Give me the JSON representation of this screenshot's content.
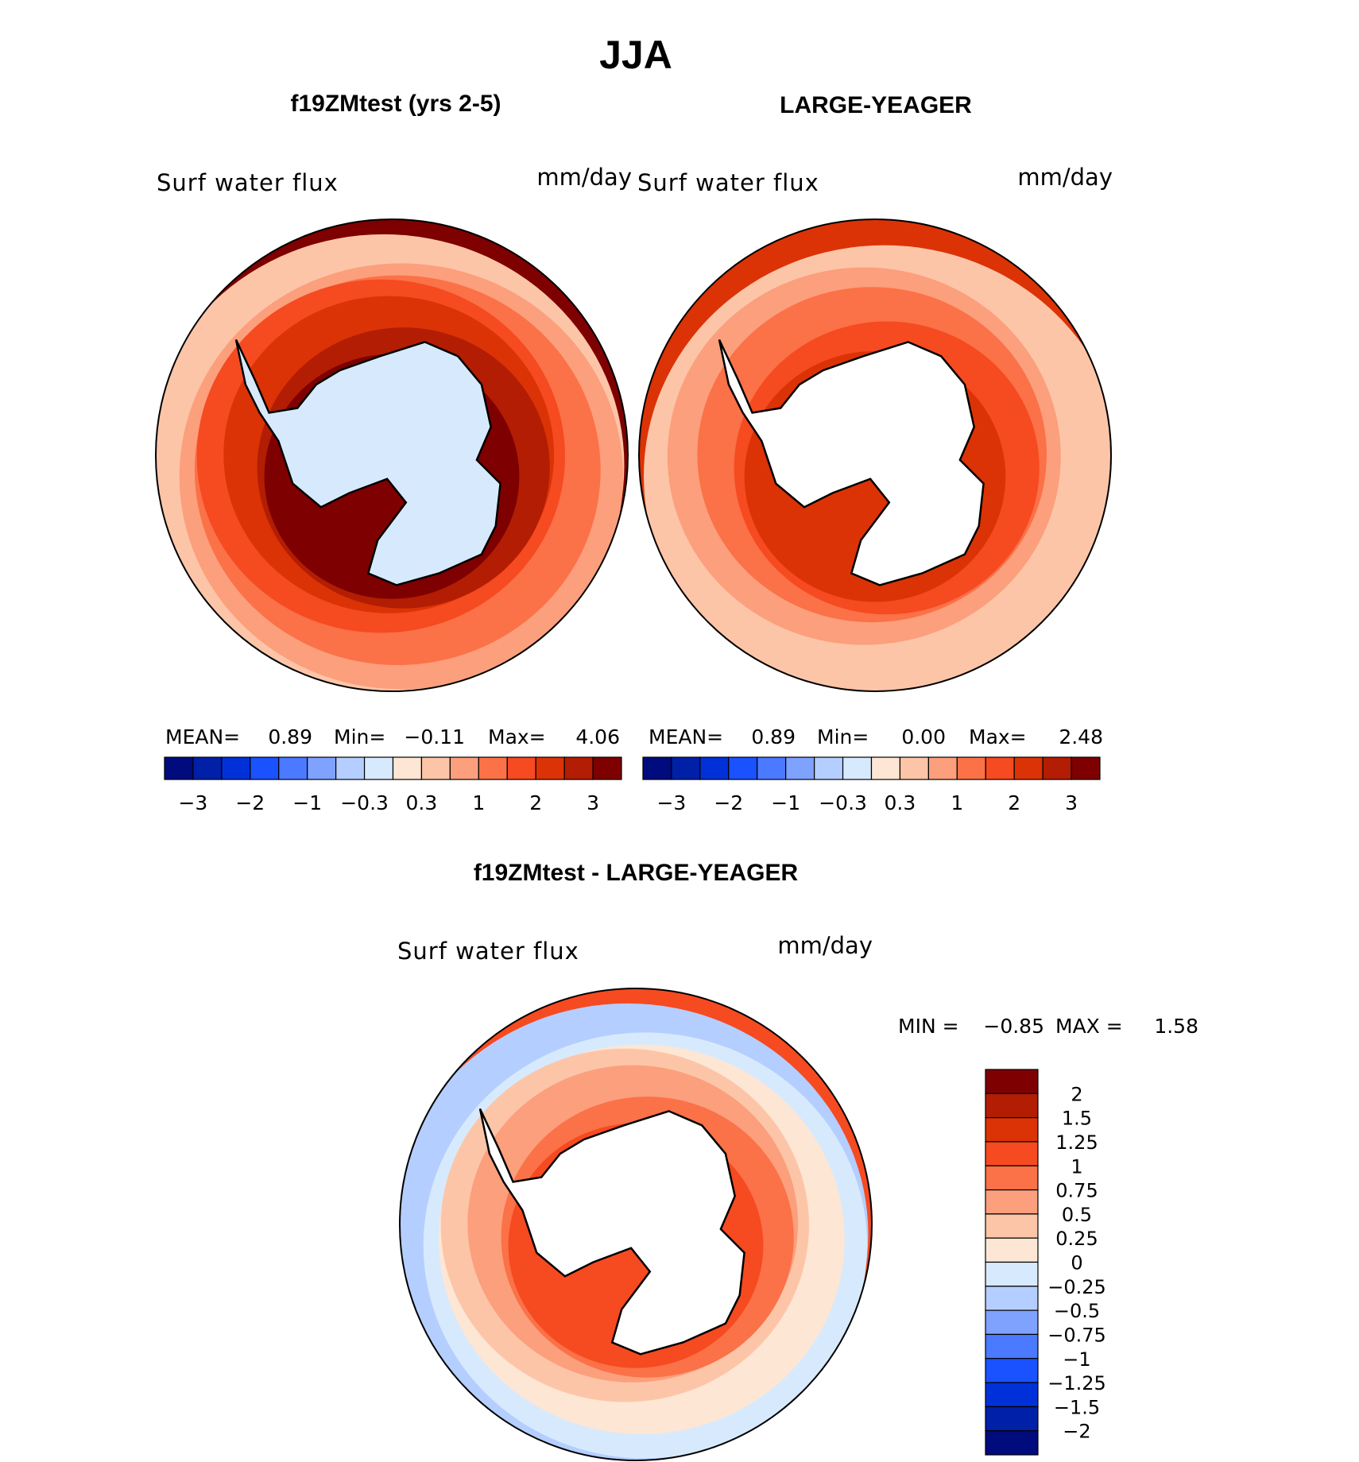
{
  "title": "JJA",
  "panels": [
    {
      "title": "f19ZMtest (yrs 2-5)",
      "variable": "Surf water flux",
      "units": "mm/day",
      "stats": {
        "mean_label": "MEAN=",
        "mean": "0.89",
        "min_label": "Min=",
        "min": "−0.11",
        "max_label": "Max=",
        "max": "4.06"
      },
      "land_color": "#d7eafd",
      "levels": [
        0.3,
        1,
        1.5,
        2,
        2.5,
        3,
        3.5
      ]
    },
    {
      "title": "LARGE-YEAGER",
      "variable": "Surf water flux",
      "units": "mm/day",
      "stats": {
        "mean_label": "MEAN=",
        "mean": "0.89",
        "min_label": "Min=",
        "min": "0.00",
        "max_label": "Max=",
        "max": "2.48"
      },
      "land_color": "#ffffff",
      "levels": [
        0.3,
        0.5,
        1,
        1.5,
        2,
        2.5
      ]
    }
  ],
  "colorbar_abs": {
    "colors": [
      "#000b7d",
      "#0020a8",
      "#0031d8",
      "#1a52ff",
      "#4b79ff",
      "#7fa2ff",
      "#b4ceff",
      "#d7eafd",
      "#fde6d4",
      "#fdc5a8",
      "#fc9f7c",
      "#fb7148",
      "#f64a21",
      "#db3306",
      "#b21d03",
      "#7e0001"
    ],
    "tick_labels": [
      "−3",
      "−2",
      "−1",
      "−0.3",
      "0.3",
      "1",
      "2",
      "3"
    ]
  },
  "diff_panel": {
    "title": "f19ZMtest - LARGE-YEAGER",
    "variable": "Surf water flux",
    "units": "mm/day",
    "min_label": "MIN =",
    "min": "−0.85",
    "max_label": "MAX =",
    "max": "1.58",
    "levels": [
      -0.5,
      -0.25,
      0,
      0.25,
      0.5,
      0.75,
      1
    ]
  },
  "colorbar_diff": {
    "colors": [
      "#7e0001",
      "#b21d03",
      "#db3306",
      "#f64a21",
      "#fb7148",
      "#fc9f7c",
      "#fdc5a8",
      "#fde6d4",
      "#d7eafd",
      "#b4ceff",
      "#7fa2ff",
      "#4b79ff",
      "#1a52ff",
      "#0031d8",
      "#0020a8",
      "#000b7d"
    ],
    "tick_labels": [
      "2",
      "1.5",
      "1.25",
      "1",
      "0.75",
      "0.5",
      "0.25",
      "0",
      "−0.25",
      "−0.5",
      "−0.75",
      "−1",
      "−1.25",
      "−1.5",
      "−2"
    ]
  }
}
